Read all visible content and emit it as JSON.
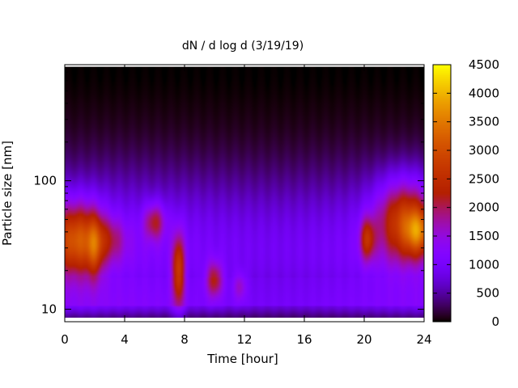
{
  "chart_data": {
    "type": "heatmap",
    "title": "dN / d log d (3/19/19)",
    "xlabel": "Time [hour]",
    "ylabel": "Particle size [nm]",
    "xlim": [
      0,
      24
    ],
    "ylim": [
      8,
      800
    ],
    "y_scale": "log",
    "x_ticks": [
      {
        "value": 0,
        "label": "0"
      },
      {
        "value": 4,
        "label": "4"
      },
      {
        "value": 8,
        "label": "8"
      },
      {
        "value": 12,
        "label": "12"
      },
      {
        "value": 16,
        "label": "16"
      },
      {
        "value": 20,
        "label": "20"
      },
      {
        "value": 24,
        "label": "24"
      }
    ],
    "y_ticks": [
      {
        "value": 10,
        "label": "10"
      },
      {
        "value": 100,
        "label": "100"
      }
    ],
    "colorbar": {
      "range": [
        0,
        4500
      ],
      "ticks": [
        {
          "value": 0,
          "label": "0"
        },
        {
          "value": 500,
          "label": "500"
        },
        {
          "value": 1000,
          "label": "1000"
        },
        {
          "value": 1500,
          "label": "1500"
        },
        {
          "value": 2000,
          "label": "2000"
        },
        {
          "value": 2500,
          "label": "2500"
        },
        {
          "value": 3000,
          "label": "3000"
        },
        {
          "value": 3500,
          "label": "3500"
        },
        {
          "value": 4000,
          "label": "4000"
        },
        {
          "value": 4500,
          "label": "4500"
        }
      ],
      "colormap": "black-purple-red-orange-yellow"
    },
    "grid": false,
    "features": [
      {
        "time_hour": 0.8,
        "diameter_nm": 35,
        "sigma_time": 1.2,
        "sigma_log10_d": 0.2,
        "value": 2000
      },
      {
        "time_hour": 2.0,
        "diameter_nm": 30,
        "sigma_time": 0.35,
        "sigma_log10_d": 0.18,
        "value": 900
      },
      {
        "time_hour": 3.0,
        "diameter_nm": 35,
        "sigma_time": 0.8,
        "sigma_log10_d": 0.12,
        "value": 700
      },
      {
        "time_hour": 6.0,
        "diameter_nm": 48,
        "sigma_time": 0.5,
        "sigma_log10_d": 0.1,
        "value": 1200
      },
      {
        "time_hour": 7.6,
        "diameter_nm": 20,
        "sigma_time": 0.3,
        "sigma_log10_d": 0.2,
        "value": 1800
      },
      {
        "time_hour": 10.0,
        "diameter_nm": 17,
        "sigma_time": 0.4,
        "sigma_log10_d": 0.1,
        "value": 1300
      },
      {
        "time_hour": 11.7,
        "diameter_nm": 15,
        "sigma_time": 0.3,
        "sigma_log10_d": 0.08,
        "value": 700
      },
      {
        "time_hour": 20.2,
        "diameter_nm": 35,
        "sigma_time": 0.35,
        "sigma_log10_d": 0.12,
        "value": 1400
      },
      {
        "time_hour": 22.7,
        "diameter_nm": 50,
        "sigma_time": 1.3,
        "sigma_log10_d": 0.22,
        "value": 1900
      },
      {
        "time_hour": 23.6,
        "diameter_nm": 40,
        "sigma_time": 0.6,
        "sigma_log10_d": 0.12,
        "value": 1400
      }
    ]
  }
}
